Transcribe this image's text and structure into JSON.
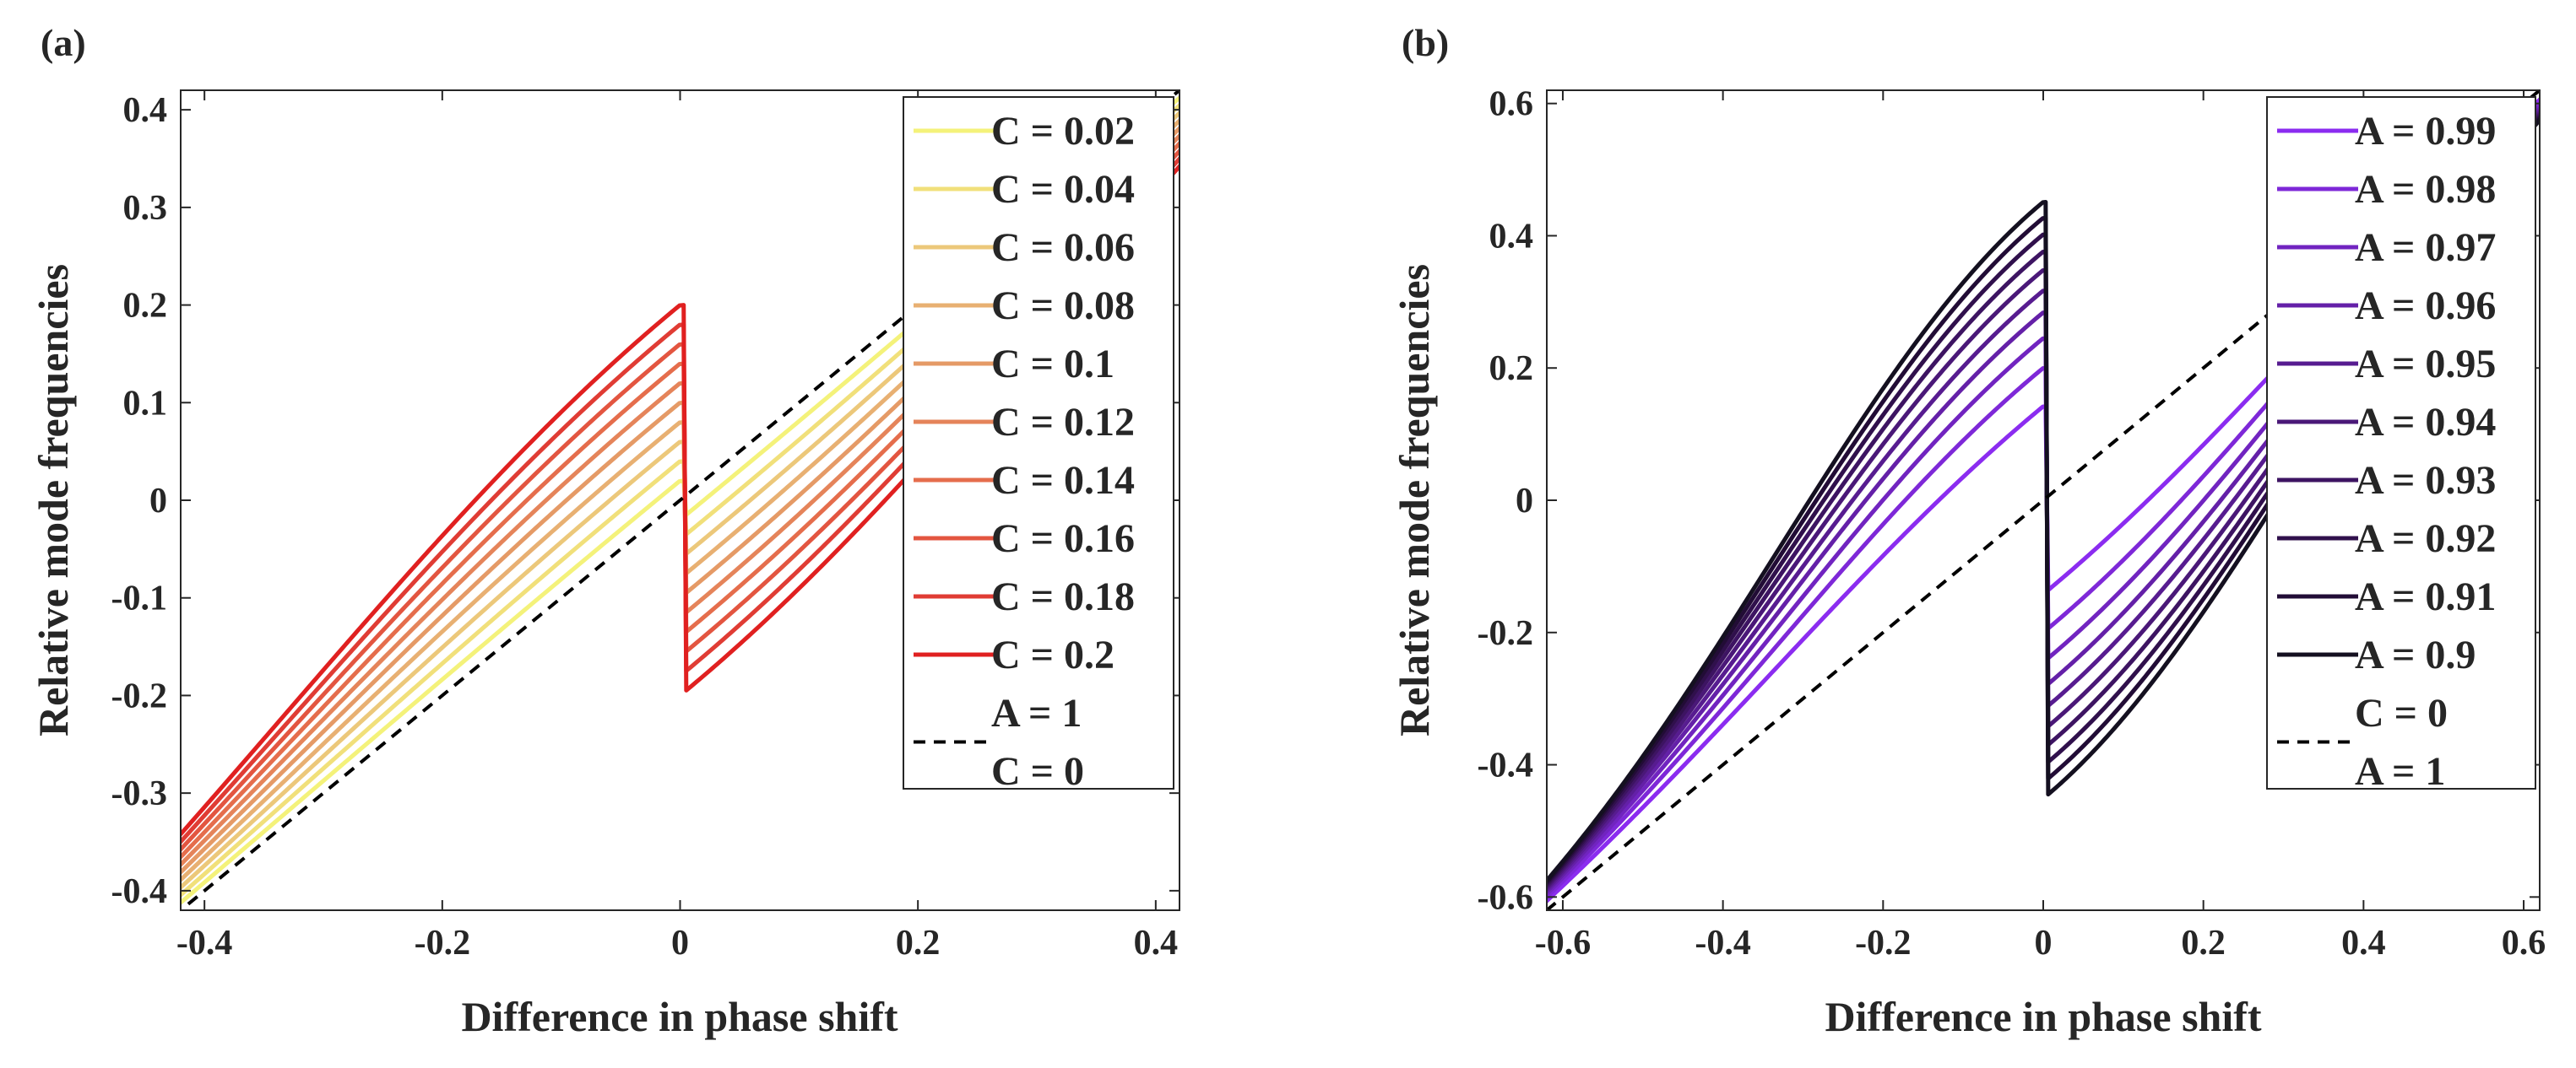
{
  "chart_data": [
    {
      "type": "line",
      "panel_label": "(a)",
      "xlabel": "Difference in phase shift",
      "ylabel": "Relative mode frequencies",
      "xlim": [
        -0.42,
        0.42
      ],
      "ylim": [
        -0.42,
        0.42
      ],
      "xticks": [
        -0.4,
        -0.2,
        0,
        0.2,
        0.4
      ],
      "xtick_labels": [
        "-0.4",
        "-0.2",
        "0",
        "0.2",
        "0.4"
      ],
      "yticks": [
        -0.4,
        -0.3,
        -0.2,
        -0.1,
        0,
        0.1,
        0.2,
        0.3,
        0.4
      ],
      "ytick_labels": [
        "-0.4",
        "-0.3",
        "-0.2",
        "-0.1",
        "0",
        "0.1",
        "0.2",
        "0.3",
        "0.4"
      ],
      "legend_position": "top-right",
      "series": [
        {
          "name": "C = 0.02",
          "gap": 0.02,
          "color": "#f4f27a",
          "style": "solid"
        },
        {
          "name": "C = 0.04",
          "gap": 0.04,
          "color": "#f1e07a",
          "style": "solid"
        },
        {
          "name": "C = 0.06",
          "gap": 0.06,
          "color": "#ecc87a",
          "style": "solid"
        },
        {
          "name": "C = 0.08",
          "gap": 0.08,
          "color": "#e8b072",
          "style": "solid"
        },
        {
          "name": "C = 0.1",
          "gap": 0.1,
          "color": "#e59a66",
          "style": "solid"
        },
        {
          "name": "C = 0.12",
          "gap": 0.12,
          "color": "#e5845a",
          "style": "solid"
        },
        {
          "name": "C = 0.14",
          "gap": 0.14,
          "color": "#e56d4c",
          "style": "solid"
        },
        {
          "name": "C = 0.16",
          "gap": 0.16,
          "color": "#e35540",
          "style": "solid"
        },
        {
          "name": "C = 0.18",
          "gap": 0.18,
          "color": "#e03c34",
          "style": "solid"
        },
        {
          "name": "C = 0.2",
          "gap": 0.2,
          "color": "#e02020",
          "style": "solid"
        },
        {
          "name": "A = 1",
          "name2": "C = 0",
          "gap": 0,
          "color": "#000000",
          "style": "dashed"
        }
      ]
    },
    {
      "type": "line",
      "panel_label": "(b)",
      "xlabel": "Difference in phase shift",
      "ylabel": "Relative mode frequencies",
      "xlim": [
        -0.62,
        0.62
      ],
      "ylim": [
        -0.62,
        0.62
      ],
      "xticks": [
        -0.6,
        -0.4,
        -0.2,
        0,
        0.2,
        0.4,
        0.6
      ],
      "xtick_labels": [
        "-0.6",
        "-0.4",
        "-0.2",
        "0",
        "0.2",
        "0.4",
        "0.6"
      ],
      "yticks": [
        -0.6,
        -0.4,
        -0.2,
        0,
        0.2,
        0.4,
        0.6
      ],
      "ytick_labels": [
        "-0.6",
        "-0.4",
        "-0.2",
        "0",
        "0.2",
        "0.4",
        "0.6"
      ],
      "legend_position": "top-right",
      "series": [
        {
          "name": "A = 0.99",
          "gap": 0.142,
          "color": "#8b2cf0",
          "style": "solid"
        },
        {
          "name": "A = 0.98",
          "gap": 0.2,
          "color": "#7e28d8",
          "style": "solid"
        },
        {
          "name": "A = 0.97",
          "gap": 0.245,
          "color": "#7124c0",
          "style": "solid"
        },
        {
          "name": "A = 0.96",
          "gap": 0.284,
          "color": "#6420a8",
          "style": "solid"
        },
        {
          "name": "A = 0.95",
          "gap": 0.317,
          "color": "#571c90",
          "style": "solid"
        },
        {
          "name": "A = 0.94",
          "gap": 0.348,
          "color": "#4a1878",
          "style": "solid"
        },
        {
          "name": "A = 0.93",
          "gap": 0.376,
          "color": "#3d1462",
          "style": "solid"
        },
        {
          "name": "A = 0.92",
          "gap": 0.402,
          "color": "#30104c",
          "style": "solid"
        },
        {
          "name": "A = 0.91",
          "gap": 0.427,
          "color": "#220c36",
          "style": "solid"
        },
        {
          "name": "A = 0.9",
          "gap": 0.451,
          "color": "#141020",
          "style": "solid"
        },
        {
          "name": "C = 0",
          "name2": "A = 1",
          "gap": 0,
          "color": "#000000",
          "style": "dashed"
        }
      ]
    }
  ]
}
